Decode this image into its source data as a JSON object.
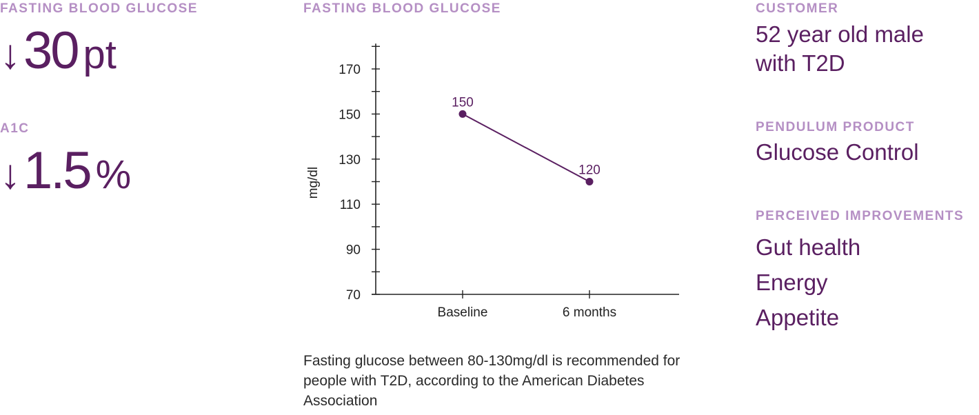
{
  "left": {
    "glucose": {
      "label": "FASTING BLOOD GLUCOSE",
      "arrow": "↓",
      "value": "30",
      "unit": "pt"
    },
    "a1c": {
      "label": "A1C",
      "arrow": "↓",
      "value": "1.5",
      "unit": "%"
    }
  },
  "chart_label": "FASTING BLOOD GLUCOSE",
  "chart_data": {
    "type": "line",
    "categories": [
      "Baseline",
      "6 months"
    ],
    "series": [
      {
        "values": [
          150,
          120
        ]
      }
    ],
    "data_labels": [
      "150",
      "120"
    ],
    "xlabel": "",
    "ylabel": "mg/dl",
    "ylim": [
      70,
      180
    ],
    "yticks": [
      70,
      90,
      110,
      130,
      150,
      170
    ],
    "grid": false,
    "color": "#5a1f61"
  },
  "note": "Fasting glucose between 80-130mg/dl is recommended for people with T2D, according to the American Diabetes Association",
  "right": {
    "customer": {
      "label": "CUSTOMER",
      "line1": "52 year old male",
      "line2": "with T2D"
    },
    "product": {
      "label": "PENDULUM PRODUCT",
      "value": "Glucose Control"
    },
    "improvements": {
      "label": "PERCEIVED IMPROVEMENTS",
      "items": [
        "Gut health",
        "Energy",
        "Appetite"
      ]
    }
  }
}
